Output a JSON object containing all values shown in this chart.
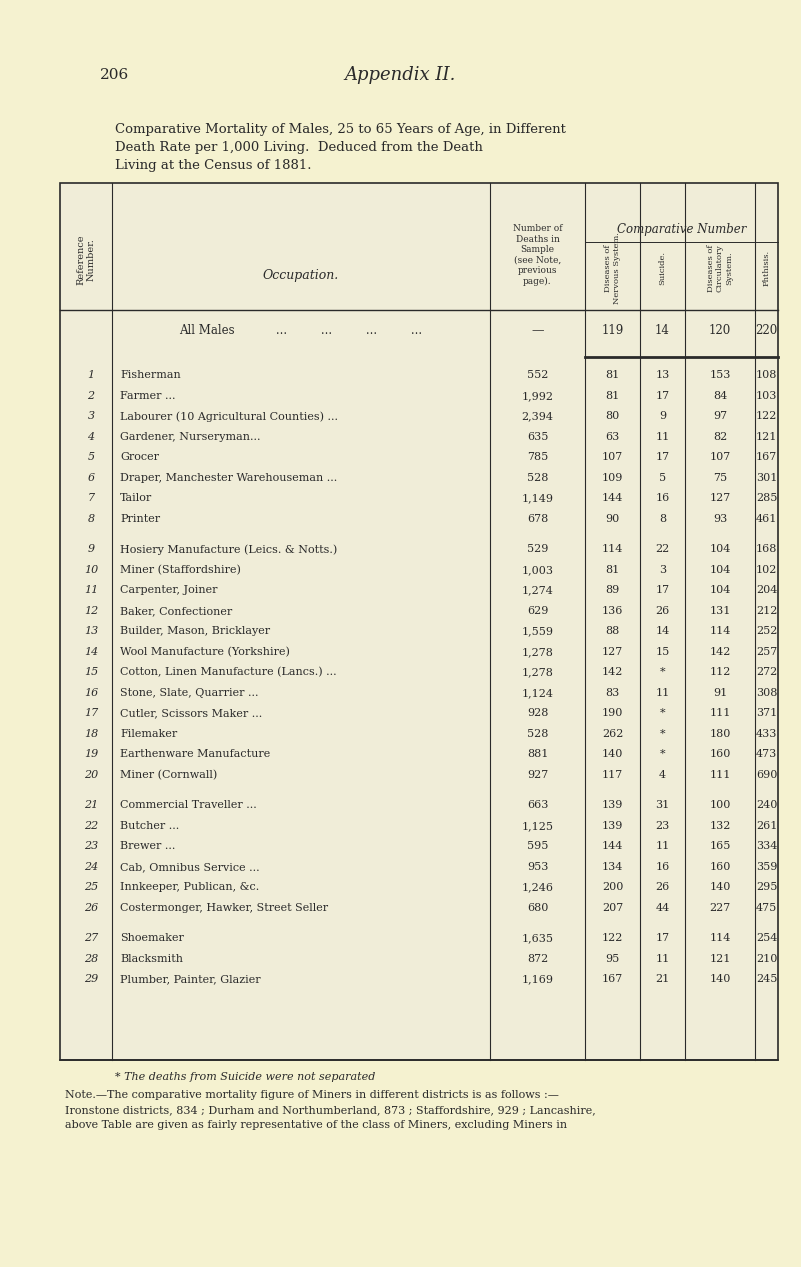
{
  "page_number": "206",
  "appendix_title": "Appendix II.",
  "title_line1": "Comparative Mortality of Males, 25 to 65 Years of Age, in Different",
  "title_line2": "Death Rate per 1,000 Living.  Deduced from the Death",
  "title_line3": "Living at the Census of 1881.",
  "bg_color": "#f5f2d0",
  "table_bg": "#f0edd8",
  "header_col1": "Reference\nNumber.",
  "header_col2": "Occupation.",
  "header_col3": "Number of\nDeaths in\nSample\n(see Note,\nprevious\npage).",
  "header_comp": "Comparative Number",
  "header_sub1": "Diseases of\nNervous System.",
  "header_sub2": "Suicide.",
  "header_sub3": "Diseases of\nCirculatory\nSystem.",
  "header_sub4": "Phthisis.",
  "all_males_row": {
    "ref": "—",
    "occ": "All Males",
    "deaths": "—",
    "nervous": "119",
    "suicide": "14",
    "circulatory": "120",
    "phthisis": "220"
  },
  "rows": [
    {
      "ref": "1",
      "occ": "Fisherman",
      "deaths": "552",
      "nervous": "81",
      "suicide": "13",
      "circulatory": "153",
      "phthisis": "108"
    },
    {
      "ref": "2",
      "occ": "Farmer ...",
      "deaths": "1,992",
      "nervous": "81",
      "suicide": "17",
      "circulatory": "84",
      "phthisis": "103"
    },
    {
      "ref": "3",
      "occ": "Labourer (10 Agricultural Counties) ...",
      "deaths": "2,394",
      "nervous": "80",
      "suicide": "9",
      "circulatory": "97",
      "phthisis": "122"
    },
    {
      "ref": "4",
      "occ": "Gardener, Nurseryman...",
      "deaths": "635",
      "nervous": "63",
      "suicide": "11",
      "circulatory": "82",
      "phthisis": "121"
    },
    {
      "ref": "5",
      "occ": "Grocer",
      "deaths": "785",
      "nervous": "107",
      "suicide": "17",
      "circulatory": "107",
      "phthisis": "167"
    },
    {
      "ref": "6",
      "occ": "Draper, Manchester Warehouseman ...",
      "deaths": "528",
      "nervous": "109",
      "suicide": "5",
      "circulatory": "75",
      "phthisis": "301"
    },
    {
      "ref": "7",
      "occ": "Tailor",
      "deaths": "1,149",
      "nervous": "144",
      "suicide": "16",
      "circulatory": "127",
      "phthisis": "285"
    },
    {
      "ref": "8",
      "occ": "Printer",
      "deaths": "678",
      "nervous": "90",
      "suicide": "8",
      "circulatory": "93",
      "phthisis": "461"
    },
    {
      "ref": "9",
      "occ": "Hosiery Manufacture (Leics. & Notts.)",
      "deaths": "529",
      "nervous": "114",
      "suicide": "22",
      "circulatory": "104",
      "phthisis": "168"
    },
    {
      "ref": "10",
      "occ": "Miner (Staffordshire)",
      "deaths": "1,003",
      "nervous": "81",
      "suicide": "3",
      "circulatory": "104",
      "phthisis": "102"
    },
    {
      "ref": "11",
      "occ": "Carpenter, Joiner",
      "deaths": "1,274",
      "nervous": "89",
      "suicide": "17",
      "circulatory": "104",
      "phthisis": "204"
    },
    {
      "ref": "12",
      "occ": "Baker, Confectioner",
      "deaths": "629",
      "nervous": "136",
      "suicide": "26",
      "circulatory": "131",
      "phthisis": "212"
    },
    {
      "ref": "13",
      "occ": "Builder, Mason, Bricklayer",
      "deaths": "1,559",
      "nervous": "88",
      "suicide": "14",
      "circulatory": "114",
      "phthisis": "252"
    },
    {
      "ref": "14",
      "occ": "Wool Manufacture (Yorkshire)",
      "deaths": "1,278",
      "nervous": "127",
      "suicide": "15",
      "circulatory": "142",
      "phthisis": "257"
    },
    {
      "ref": "15",
      "occ": "Cotton, Linen Manufacture (Lancs.) ...",
      "deaths": "1,278",
      "nervous": "142",
      "suicide": "*",
      "circulatory": "112",
      "phthisis": "272"
    },
    {
      "ref": "16",
      "occ": "Stone, Slate, Quarrier ...",
      "deaths": "1,124",
      "nervous": "83",
      "suicide": "11",
      "circulatory": "91",
      "phthisis": "308"
    },
    {
      "ref": "17",
      "occ": "Cutler, Scissors Maker ...",
      "deaths": "928",
      "nervous": "190",
      "suicide": "*",
      "circulatory": "111",
      "phthisis": "371"
    },
    {
      "ref": "18",
      "occ": "Filemaker",
      "deaths": "528",
      "nervous": "262",
      "suicide": "*",
      "circulatory": "180",
      "phthisis": "433"
    },
    {
      "ref": "19",
      "occ": "Earthenware Manufacture",
      "deaths": "881",
      "nervous": "140",
      "suicide": "*",
      "circulatory": "160",
      "phthisis": "473"
    },
    {
      "ref": "20",
      "occ": "Miner (Cornwall)",
      "deaths": "927",
      "nervous": "117",
      "suicide": "4",
      "circulatory": "111",
      "phthisis": "690"
    },
    {
      "ref": "21",
      "occ": "Commercial Traveller ...",
      "deaths": "663",
      "nervous": "139",
      "suicide": "31",
      "circulatory": "100",
      "phthisis": "240"
    },
    {
      "ref": "22",
      "occ": "Butcher ...",
      "deaths": "1,125",
      "nervous": "139",
      "suicide": "23",
      "circulatory": "132",
      "phthisis": "261"
    },
    {
      "ref": "23",
      "occ": "Brewer ...",
      "deaths": "595",
      "nervous": "144",
      "suicide": "11",
      "circulatory": "165",
      "phthisis": "334"
    },
    {
      "ref": "24",
      "occ": "Cab, Omnibus Service ...",
      "deaths": "953",
      "nervous": "134",
      "suicide": "16",
      "circulatory": "160",
      "phthisis": "359"
    },
    {
      "ref": "25",
      "occ": "Innkeeper, Publican, &c.",
      "deaths": "1,246",
      "nervous": "200",
      "suicide": "26",
      "circulatory": "140",
      "phthisis": "295"
    },
    {
      "ref": "26",
      "occ": "Costermonger, Hawker, Street Seller",
      "deaths": "680",
      "nervous": "207",
      "suicide": "44",
      "circulatory": "227",
      "phthisis": "475"
    },
    {
      "ref": "27",
      "occ": "Shoemaker",
      "deaths": "1,635",
      "nervous": "122",
      "suicide": "17",
      "circulatory": "114",
      "phthisis": "254"
    },
    {
      "ref": "28",
      "occ": "Blacksmith",
      "deaths": "872",
      "nervous": "95",
      "suicide": "11",
      "circulatory": "121",
      "phthisis": "210"
    },
    {
      "ref": "29",
      "occ": "Plumber, Painter, Glazier",
      "deaths": "1,169",
      "nervous": "167",
      "suicide": "21",
      "circulatory": "140",
      "phthisis": "245"
    }
  ],
  "footnote_star": "* The deaths from Suicide were not separated",
  "footnote_note": "Note.—The comparative mortality figure of Miners in different districts is as follows :—",
  "footnote_body": "Ironstone districts, 834 ; Durham and Northumberland, 873 ; Staffordshire, 929 ; Lancashire,",
  "footnote_body2": "above Table are given as fairly representative of the class of Miners, excluding Miners in"
}
